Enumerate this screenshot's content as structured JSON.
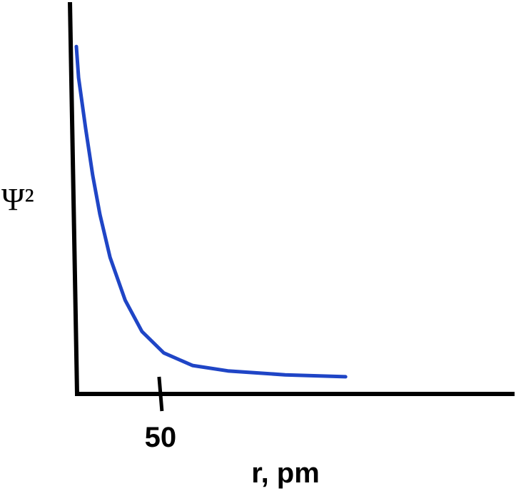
{
  "chart_data": {
    "type": "line",
    "x_label": "r, pm",
    "y_label": "Ψ²",
    "x": [
      0,
      1.3,
      5.5,
      9.7,
      14,
      20,
      29,
      39,
      52,
      69,
      90,
      124,
      160
    ],
    "values": [
      89,
      81,
      68,
      56,
      46,
      35,
      24,
      16,
      10.5,
      7.3,
      5.9,
      4.9,
      4.4
    ],
    "color": "#1f45c6",
    "xlim": [
      0,
      260
    ],
    "ylim": [
      0,
      100
    ],
    "xticks": [
      50
    ]
  }
}
